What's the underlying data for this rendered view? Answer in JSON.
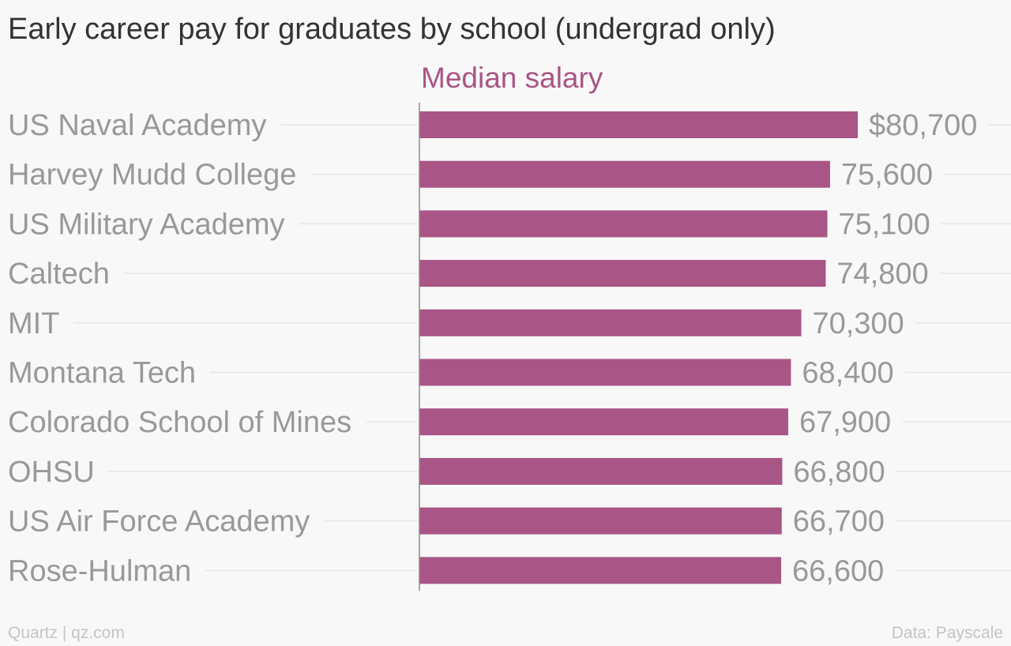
{
  "header": {
    "title": "Early career pay for graduates by school (undergrad only)"
  },
  "footer": {
    "credit": "Quartz | qz.com",
    "source": "Data: Payscale"
  },
  "colors": {
    "bar": "#a95586",
    "series_label": "#a95586",
    "category_text": "#999999",
    "value_text": "#999999",
    "gridline": "#e6e6e6",
    "axis": "#8a8a8a"
  },
  "chart_data": {
    "type": "bar",
    "orientation": "horizontal",
    "categories": [
      "US Naval Academy",
      "Harvey Mudd College",
      "US Military Academy",
      "Caltech",
      "MIT",
      "Montana Tech",
      "Colorado School of Mines",
      "OHSU",
      "US Air Force Academy",
      "Rose-Hulman"
    ],
    "series": [
      {
        "name": "Median salary",
        "values": [
          80700,
          75600,
          75100,
          74800,
          70300,
          68400,
          67900,
          66800,
          66700,
          66600
        ]
      }
    ],
    "value_labels": [
      "$80,700",
      "75,600",
      "75,100",
      "74,800",
      "70,300",
      "68,400",
      "67,900",
      "66,800",
      "66,700",
      "66,600"
    ],
    "title": "Early career pay for graduates by school (undergrad only)",
    "xlim": [
      0,
      80700
    ],
    "grid": false,
    "legend": "series label above bars"
  }
}
